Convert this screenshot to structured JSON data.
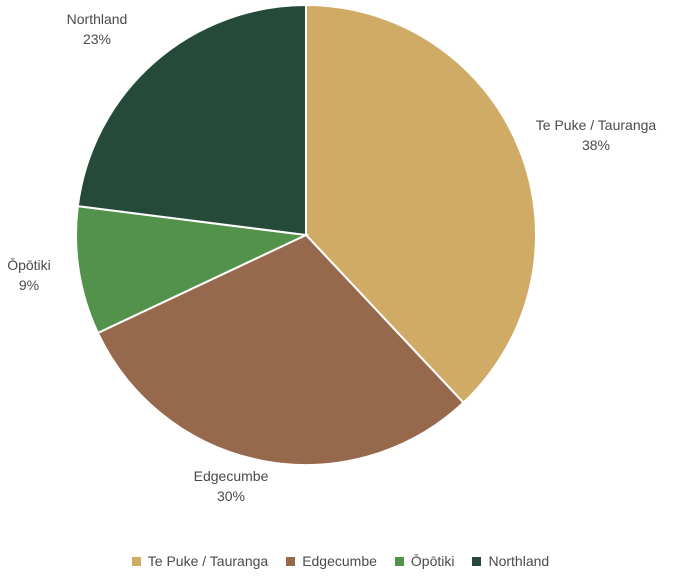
{
  "chart_data": {
    "type": "pie",
    "title": "",
    "start_angle_deg": 0,
    "direction": "clockwise",
    "slices": [
      {
        "label": "Te Puke / Tauranga",
        "value": 38,
        "pct_label": "38%",
        "color": "#cfab66"
      },
      {
        "label": "Edgecumbe",
        "value": 30,
        "pct_label": "30%",
        "color": "#96694d"
      },
      {
        "label": "Ōpōtiki",
        "value": 9,
        "pct_label": "9%",
        "color": "#52924a"
      },
      {
        "label": "Northland",
        "value": 23,
        "pct_label": "23%",
        "color": "#264a39"
      }
    ],
    "legend": {
      "placement": "bottom",
      "entries": [
        "Te Puke / Tauranga",
        "Edgecumbe",
        "Ōpōtiki",
        "Northland"
      ]
    }
  }
}
